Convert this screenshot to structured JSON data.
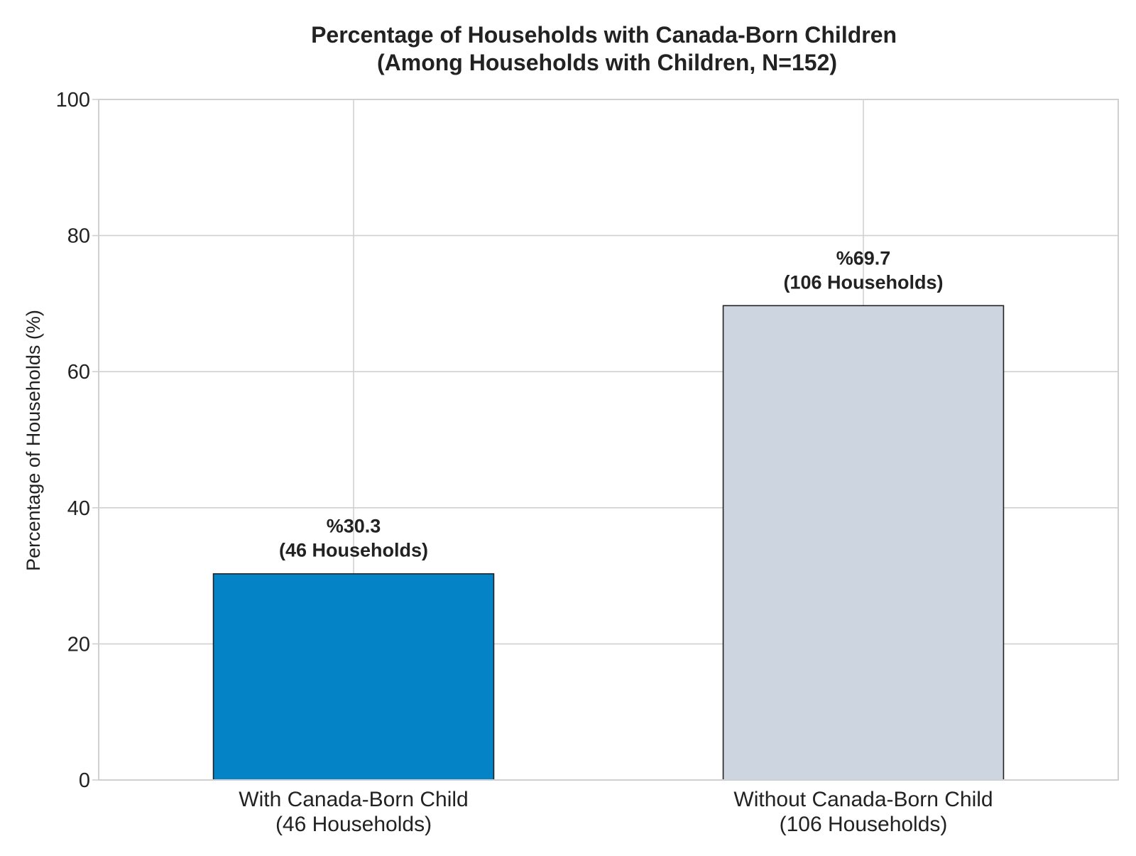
{
  "chart_data": {
    "type": "bar",
    "title": [
      "Percentage of Households with Canada-Born Children",
      "(Among Households with Children, N=152)"
    ],
    "xlabel": "",
    "ylabel": "Percentage of Households (%)",
    "ylim": [
      0,
      100
    ],
    "yticks": [
      0,
      20,
      40,
      60,
      80,
      100
    ],
    "grid": true,
    "categories": [
      [
        "With Canada-Born Child",
        "(46 Households)"
      ],
      [
        "Without Canada-Born Child",
        "(106 Households)"
      ]
    ],
    "values": [
      30.3,
      69.7
    ],
    "bar_labels": [
      [
        "%30.3",
        "(46 Households)"
      ],
      [
        "%69.7",
        "(106 Households)"
      ]
    ],
    "colors": [
      "#0483c6",
      "#ccd5e0"
    ],
    "edge_color": "#222222",
    "grid_color": "#d0d0d0"
  }
}
